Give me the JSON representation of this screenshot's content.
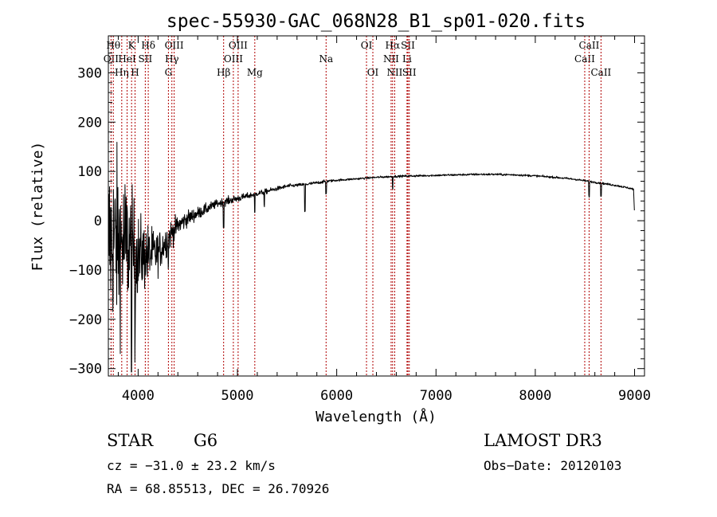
{
  "chart_data": {
    "type": "line",
    "title": "spec-55930-GAC_068N28_B1_sp01-020.fits",
    "xlabel": "Wavelength (Å)",
    "ylabel": "Flux (relative)",
    "xlim": [
      3700,
      9100
    ],
    "ylim": [
      -315,
      375
    ],
    "x_ticks": [
      4000,
      5000,
      6000,
      7000,
      8000,
      9000
    ],
    "y_ticks": [
      -300,
      -200,
      -100,
      0,
      100,
      200,
      300
    ],
    "x_tick_labels": [
      "4000",
      "5000",
      "6000",
      "7000",
      "8000",
      "9000"
    ],
    "y_tick_labels": [
      "−300",
      "−200",
      "−100",
      "0",
      "100",
      "200",
      "300"
    ],
    "line_color": "#000000",
    "marker_color": "#b00000",
    "spectral_lines": [
      {
        "name": "OII",
        "wavelength": 3727,
        "row": 2
      },
      {
        "name": "Hθ",
        "wavelength": 3750,
        "row": 1
      },
      {
        "name": "Hη",
        "wavelength": 3835,
        "row": 3
      },
      {
        "name": "K",
        "wavelength": 3934,
        "row": 1
      },
      {
        "name": "HeI",
        "wavelength": 3889,
        "row": 2
      },
      {
        "name": "H",
        "wavelength": 3969,
        "row": 3
      },
      {
        "name": "SII",
        "wavelength": 4072,
        "row": 2
      },
      {
        "name": "Hδ",
        "wavelength": 4102,
        "row": 1
      },
      {
        "name": "OIII",
        "wavelength": 4363,
        "row": 1
      },
      {
        "name": "Hγ",
        "wavelength": 4340,
        "row": 2
      },
      {
        "name": "G",
        "wavelength": 4305,
        "row": 3
      },
      {
        "name": "Hβ",
        "wavelength": 4861,
        "row": 3
      },
      {
        "name": "OIII",
        "wavelength": 4959,
        "row": 2
      },
      {
        "name": "OIII",
        "wavelength": 5007,
        "row": 1
      },
      {
        "name": "Mg",
        "wavelength": 5175,
        "row": 3
      },
      {
        "name": "Na",
        "wavelength": 5893,
        "row": 2
      },
      {
        "name": "OI",
        "wavelength": 6300,
        "row": 1
      },
      {
        "name": "OI",
        "wavelength": 6364,
        "row": 3
      },
      {
        "name": "NII",
        "wavelength": 6548,
        "row": 2
      },
      {
        "name": "Hα",
        "wavelength": 6563,
        "row": 1
      },
      {
        "name": "NII",
        "wavelength": 6584,
        "row": 3
      },
      {
        "name": "Li",
        "wavelength": 6708,
        "row": 2
      },
      {
        "name": "SII",
        "wavelength": 6717,
        "row": 1
      },
      {
        "name": "SII",
        "wavelength": 6731,
        "row": 3
      },
      {
        "name": "CaII",
        "wavelength": 8498,
        "row": 2
      },
      {
        "name": "CaII",
        "wavelength": 8542,
        "row": 1
      },
      {
        "name": "CaII",
        "wavelength": 8662,
        "row": 3
      }
    ],
    "spectrum_anchors": {
      "wavelength": [
        3700,
        3750,
        3800,
        3850,
        3900,
        4000,
        4100,
        4200,
        4300,
        4400,
        4500,
        4600,
        4700,
        4800,
        4900,
        5000,
        5100,
        5200,
        5300,
        5400,
        5500,
        5600,
        5700,
        5800,
        5900,
        6000,
        6200,
        6400,
        6600,
        6800,
        7000,
        7200,
        7400,
        7600,
        7800,
        8000,
        8200,
        8400,
        8600,
        8800,
        8950,
        8990,
        9000
      ],
      "flux": [
        -40,
        -40,
        -45,
        -50,
        -50,
        -70,
        -70,
        -65,
        -35,
        -10,
        5,
        15,
        25,
        35,
        40,
        45,
        50,
        55,
        60,
        65,
        70,
        72,
        74,
        77,
        80,
        82,
        85,
        88,
        90,
        91,
        92,
        93,
        94,
        94,
        93,
        91,
        88,
        84,
        78,
        72,
        66,
        64,
        10
      ],
      "noise_amplitude": [
        170,
        170,
        170,
        150,
        130,
        80,
        60,
        40,
        30,
        20,
        15,
        12,
        10,
        8,
        8,
        7,
        6,
        5,
        5,
        4,
        4,
        3,
        3,
        3,
        3,
        2,
        2,
        2,
        2,
        2,
        2,
        2,
        2,
        2,
        2,
        2,
        2,
        2,
        2,
        2,
        2,
        2,
        0
      ]
    }
  },
  "info": {
    "object_class": "STAR",
    "subclass": "G6",
    "redshift": "cz = −31.0 ± 23.2 km/s",
    "coords": "RA =  68.85513, DEC =  26.70926",
    "survey": "LAMOST DR3",
    "obs_date": "Obs−Date: 20120103"
  }
}
